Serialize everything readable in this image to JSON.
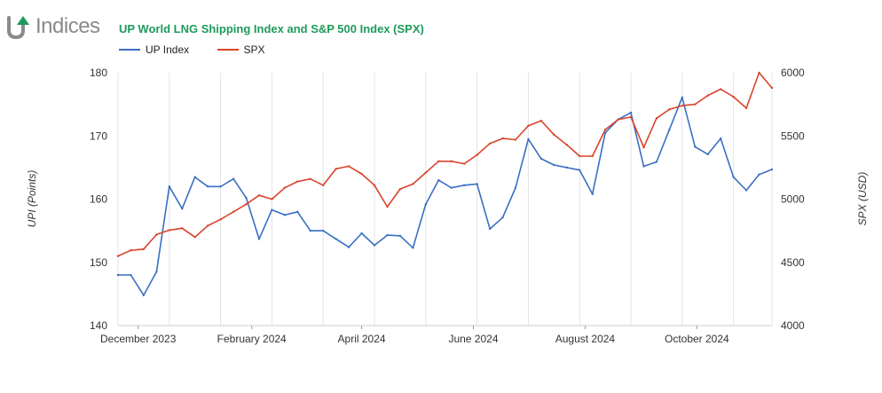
{
  "brand": {
    "name": "Indices",
    "letters": "UP",
    "color": "#1e9a5a"
  },
  "chart_data": {
    "type": "line",
    "title": "UP World LNG Shipping Index and S&P 500 Index (SPX)",
    "x": [
      "2023-11-20",
      "2023-11-27",
      "2023-12-04",
      "2023-12-11",
      "2023-12-18",
      "2023-12-25",
      "2024-01-01",
      "2024-01-08",
      "2024-01-15",
      "2024-01-22",
      "2024-01-29",
      "2024-02-05",
      "2024-02-12",
      "2024-02-19",
      "2024-02-26",
      "2024-03-04",
      "2024-03-11",
      "2024-03-18",
      "2024-03-25",
      "2024-04-01",
      "2024-04-08",
      "2024-04-15",
      "2024-04-22",
      "2024-04-29",
      "2024-05-06",
      "2024-05-13",
      "2024-05-20",
      "2024-05-27",
      "2024-06-03",
      "2024-06-10",
      "2024-06-17",
      "2024-06-24",
      "2024-07-01",
      "2024-07-08",
      "2024-07-15",
      "2024-07-22",
      "2024-07-29",
      "2024-08-05",
      "2024-08-12",
      "2024-08-19",
      "2024-08-26",
      "2024-09-02",
      "2024-09-09",
      "2024-09-16",
      "2024-09-23",
      "2024-09-30",
      "2024-10-07",
      "2024-10-14",
      "2024-10-21",
      "2024-10-28",
      "2024-11-04",
      "2024-11-11"
    ],
    "series": [
      {
        "name": "UP Index",
        "axis": "left",
        "color": "#3a6fc4",
        "values": [
          148,
          148,
          144.8,
          148.5,
          162,
          158.5,
          163.5,
          162,
          162,
          163.2,
          160.2,
          153.7,
          158.3,
          157.5,
          158,
          155,
          155,
          153.7,
          152.4,
          154.6,
          152.7,
          154.3,
          154.2,
          152.3,
          159.2,
          163,
          161.8,
          162.2,
          162.4,
          155.3,
          157.1,
          161.8,
          169.5,
          166.4,
          165.4,
          165,
          164.6,
          160.8,
          170.5,
          172.6,
          173.7,
          165.2,
          165.9,
          171,
          176.1,
          168.3,
          167.1,
          169.6,
          163.5,
          161.4,
          163.9,
          164.7
        ]
      },
      {
        "name": "SPX",
        "axis": "right",
        "color": "#d9442b",
        "values": [
          4550,
          4595,
          4605,
          4720,
          4755,
          4770,
          4700,
          4790,
          4840,
          4900,
          4960,
          5030,
          5000,
          5090,
          5140,
          5160,
          5110,
          5240,
          5260,
          5200,
          5110,
          4940,
          5080,
          5120,
          5210,
          5300,
          5300,
          5280,
          5350,
          5440,
          5480,
          5470,
          5580,
          5620,
          5510,
          5430,
          5340,
          5340,
          5550,
          5630,
          5650,
          5410,
          5640,
          5710,
          5740,
          5750,
          5820,
          5870,
          5810,
          5720,
          6000,
          5880
        ]
      }
    ],
    "x_tick_labels": [
      "December 2023",
      "February 2024",
      "April 2024",
      "June 2024",
      "August 2024",
      "October 2024"
    ],
    "x_tick_dates": [
      "2023-12-01",
      "2024-02-01",
      "2024-04-01",
      "2024-06-01",
      "2024-08-01",
      "2024-10-01"
    ],
    "ylabel": "UPI (Points)",
    "ylabel_right": "SPX (USD)",
    "ylim": [
      140,
      180
    ],
    "ylim_right": [
      4000,
      6000
    ],
    "yticks": [
      140,
      150,
      160,
      170,
      180
    ],
    "yticks_right": [
      4000,
      4500,
      5000,
      5500,
      6000
    ],
    "legend": "top-left",
    "grid": "vertical"
  }
}
